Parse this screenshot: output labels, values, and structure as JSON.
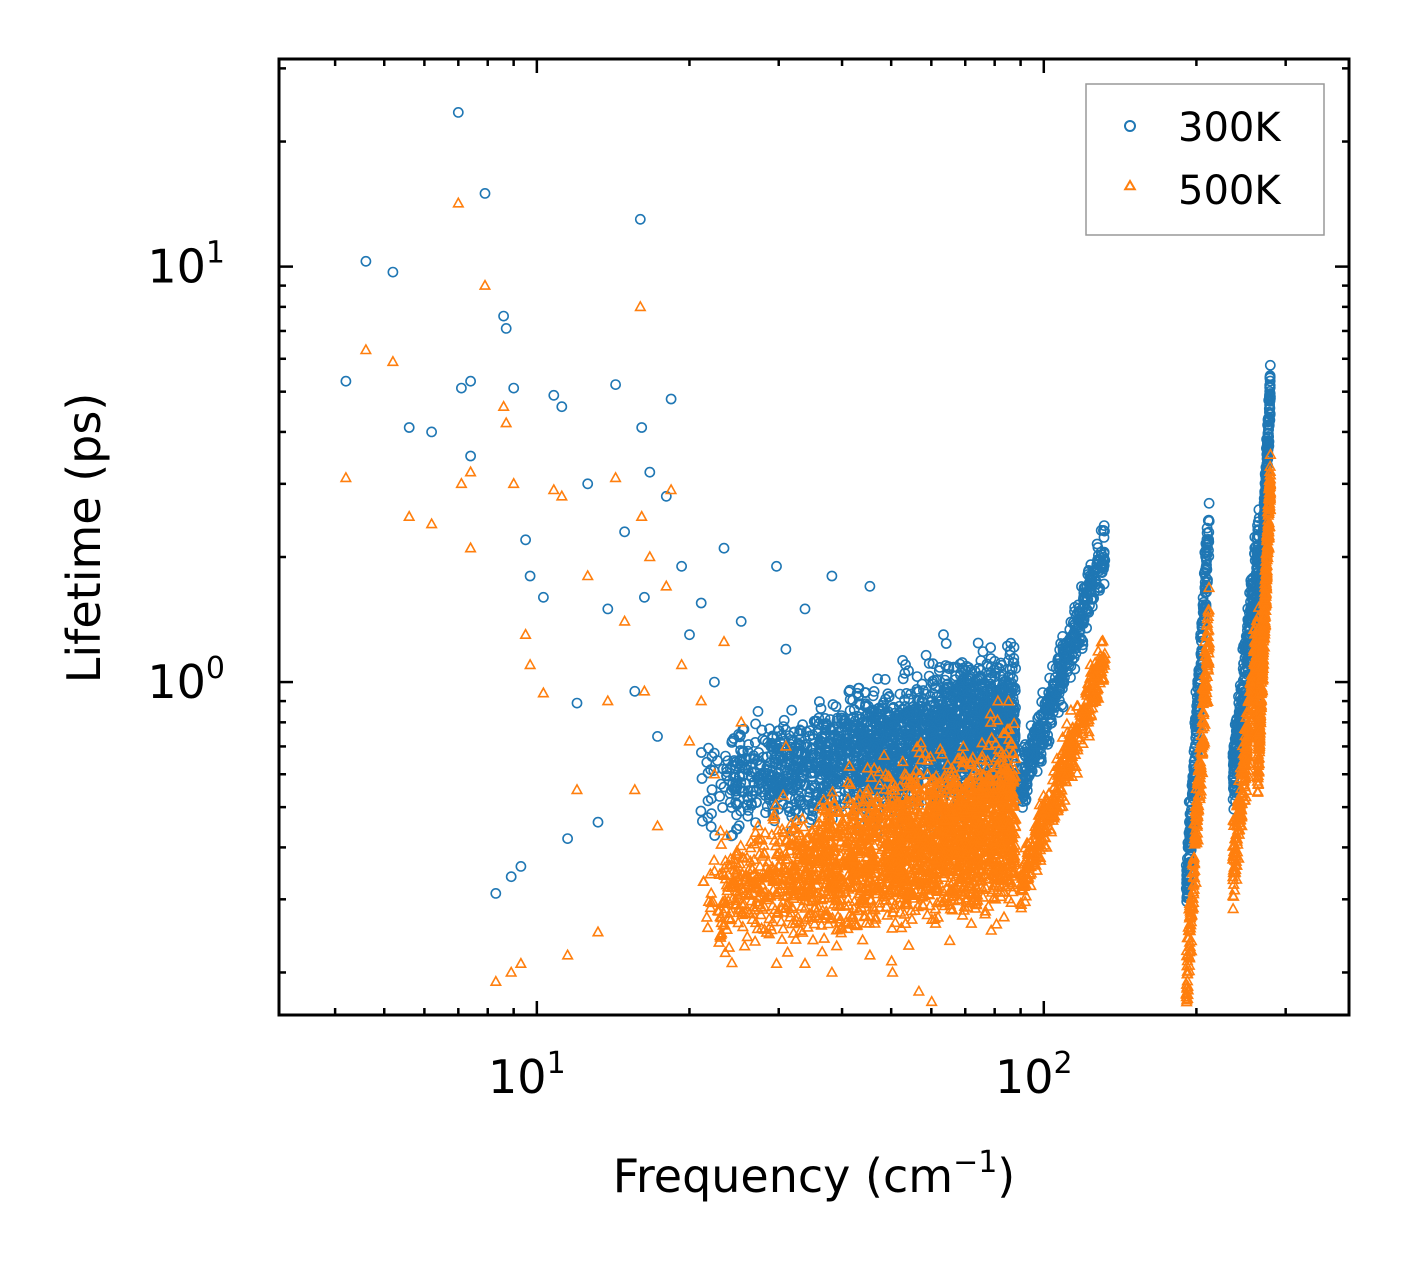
{
  "chart_data": {
    "type": "scatter",
    "xscale": "log",
    "yscale": "log",
    "xlim": [
      3.1,
      400
    ],
    "ylim": [
      0.158,
      31.6
    ],
    "xlabel": "Frequency (cm",
    "xlabel_sup": "−1",
    "xlabel_close": ")",
    "ylabel": "Lifetime (ps)",
    "x_ticks": [
      {
        "value": 10,
        "base": "10",
        "exp": "1"
      },
      {
        "value": 100,
        "base": "10",
        "exp": "2"
      }
    ],
    "y_ticks": [
      {
        "value": 1,
        "base": "10",
        "exp": "0"
      },
      {
        "value": 10,
        "base": "10",
        "exp": "1"
      }
    ],
    "legend_position": "top-right",
    "series": [
      {
        "name": "300K",
        "color": "#1f77b4",
        "marker": "circle-open",
        "points": [
          [
            4.2,
            5.3
          ],
          [
            4.6,
            10.3
          ],
          [
            5.2,
            9.7
          ],
          [
            5.6,
            4.1
          ],
          [
            6.2,
            4.0
          ],
          [
            7.0,
            23.5
          ],
          [
            7.1,
            5.1
          ],
          [
            7.4,
            5.3
          ],
          [
            7.4,
            3.5
          ],
          [
            7.9,
            15.0
          ],
          [
            8.3,
            0.31
          ],
          [
            8.6,
            7.6
          ],
          [
            8.7,
            7.1
          ],
          [
            8.9,
            0.34
          ],
          [
            9.0,
            5.1
          ],
          [
            9.3,
            0.36
          ],
          [
            9.5,
            2.2
          ],
          [
            9.7,
            1.8
          ],
          [
            10.3,
            1.6
          ],
          [
            10.8,
            4.9
          ],
          [
            11.2,
            4.6
          ],
          [
            11.5,
            0.42
          ],
          [
            12.0,
            0.89
          ],
          [
            12.6,
            3.0
          ],
          [
            13.2,
            0.46
          ],
          [
            13.8,
            1.5
          ],
          [
            14.3,
            5.2
          ],
          [
            14.9,
            2.3
          ],
          [
            15.6,
            0.95
          ],
          [
            16.0,
            13.0
          ],
          [
            16.1,
            4.1
          ],
          [
            16.3,
            1.6
          ],
          [
            16.7,
            3.2
          ],
          [
            17.3,
            0.74
          ],
          [
            18.0,
            2.8
          ],
          [
            18.4,
            4.8
          ],
          [
            19.3,
            1.9
          ],
          [
            20.0,
            1.3
          ],
          [
            21.1,
            1.55
          ],
          [
            22.4,
            1.0
          ],
          [
            23.4,
            2.1
          ],
          [
            24.2,
            0.55
          ],
          [
            25.3,
            1.4
          ],
          [
            27.3,
            0.85
          ],
          [
            29.7,
            1.9
          ],
          [
            31.0,
            1.2
          ],
          [
            33.8,
            1.5
          ],
          [
            38.2,
            1.8
          ],
          [
            45.4,
            1.7
          ],
          [
            50.3,
            0.66
          ],
          [
            53.2,
            1.05
          ],
          [
            56.7,
            0.95
          ],
          [
            60.1,
            0.9
          ],
          [
            63.4,
            1.3
          ],
          [
            66.6,
            0.8
          ],
          [
            70.0,
            0.9
          ],
          [
            75.4,
            0.87
          ],
          [
            80.3,
            1.05
          ],
          [
            83.6,
            0.75
          ],
          [
            87.9,
            0.8
          ]
        ],
        "band": {
          "x_range": [
            20.5,
            88.0
          ],
          "y_center": [
            0.55,
            0.82
          ],
          "spread": 0.17,
          "count": 2200
        },
        "segments": [
          {
            "x_range": [
              90.0,
              132.0
            ],
            "y_range": [
              0.56,
              2.05
            ],
            "spread": 0.07,
            "count": 420
          },
          {
            "x_range": [
              191.0,
              212.0
            ],
            "y_range": [
              0.3,
              2.4
            ],
            "spread": 0.09,
            "count": 260
          },
          {
            "x_range": [
              236.0,
              266.0
            ],
            "y_range": [
              0.58,
              2.2
            ],
            "spread": 0.09,
            "count": 300
          },
          {
            "x_range": [
              264.0,
              280.0
            ],
            "y_range": [
              1.0,
              5.3
            ],
            "spread": 0.07,
            "count": 340
          }
        ]
      },
      {
        "name": "500K",
        "color": "#ff7f0e",
        "marker": "triangle-open",
        "points": [
          [
            4.2,
            3.1
          ],
          [
            4.6,
            6.3
          ],
          [
            5.2,
            5.9
          ],
          [
            5.6,
            2.5
          ],
          [
            6.2,
            2.4
          ],
          [
            7.0,
            14.2
          ],
          [
            7.1,
            3.0
          ],
          [
            7.4,
            3.2
          ],
          [
            7.4,
            2.1
          ],
          [
            7.9,
            9.0
          ],
          [
            8.3,
            0.19
          ],
          [
            8.6,
            4.6
          ],
          [
            8.7,
            4.2
          ],
          [
            8.9,
            0.2
          ],
          [
            9.0,
            3.0
          ],
          [
            9.3,
            0.21
          ],
          [
            9.5,
            1.3
          ],
          [
            9.7,
            1.1
          ],
          [
            10.3,
            0.94
          ],
          [
            10.8,
            2.9
          ],
          [
            11.2,
            2.8
          ],
          [
            11.5,
            0.22
          ],
          [
            12.0,
            0.55
          ],
          [
            12.6,
            1.8
          ],
          [
            13.2,
            0.25
          ],
          [
            13.8,
            0.9
          ],
          [
            14.3,
            3.1
          ],
          [
            14.9,
            1.4
          ],
          [
            15.6,
            0.55
          ],
          [
            16.0,
            8.0
          ],
          [
            16.1,
            2.5
          ],
          [
            16.3,
            0.95
          ],
          [
            16.7,
            2.0
          ],
          [
            17.3,
            0.45
          ],
          [
            18.0,
            1.7
          ],
          [
            18.4,
            2.9
          ],
          [
            19.3,
            1.1
          ],
          [
            20.0,
            0.72
          ],
          [
            21.1,
            0.9
          ],
          [
            22.4,
            0.6
          ],
          [
            23.4,
            1.25
          ],
          [
            24.2,
            0.32
          ],
          [
            25.3,
            0.8
          ],
          [
            27.3,
            0.45
          ],
          [
            29.7,
            0.21
          ],
          [
            31.0,
            0.7
          ],
          [
            33.8,
            0.21
          ],
          [
            38.2,
            0.2
          ],
          [
            45.4,
            0.22
          ],
          [
            50.3,
            0.2
          ],
          [
            53.2,
            0.6
          ],
          [
            56.7,
            0.18
          ],
          [
            60.1,
            0.17
          ],
          [
            63.4,
            0.5
          ],
          [
            66.6,
            0.45
          ],
          [
            70.0,
            0.55
          ],
          [
            75.4,
            0.35
          ],
          [
            80.3,
            0.3
          ],
          [
            83.6,
            0.55
          ],
          [
            87.9,
            0.45
          ]
        ],
        "band": {
          "x_range": [
            20.5,
            88.0
          ],
          "y_center": [
            0.3,
            0.47
          ],
          "spread": 0.2,
          "count": 2400
        },
        "segments": [
          {
            "x_range": [
              90.0,
              132.0
            ],
            "y_range": [
              0.32,
              1.15
            ],
            "spread": 0.07,
            "count": 420
          },
          {
            "x_range": [
              191.0,
              212.0
            ],
            "y_range": [
              0.18,
              1.4
            ],
            "spread": 0.09,
            "count": 260
          },
          {
            "x_range": [
              236.0,
              266.0
            ],
            "y_range": [
              0.35,
              1.3
            ],
            "spread": 0.09,
            "count": 300
          },
          {
            "x_range": [
              264.0,
              280.0
            ],
            "y_range": [
              0.6,
              3.1
            ],
            "spread": 0.07,
            "count": 340
          }
        ]
      }
    ]
  }
}
